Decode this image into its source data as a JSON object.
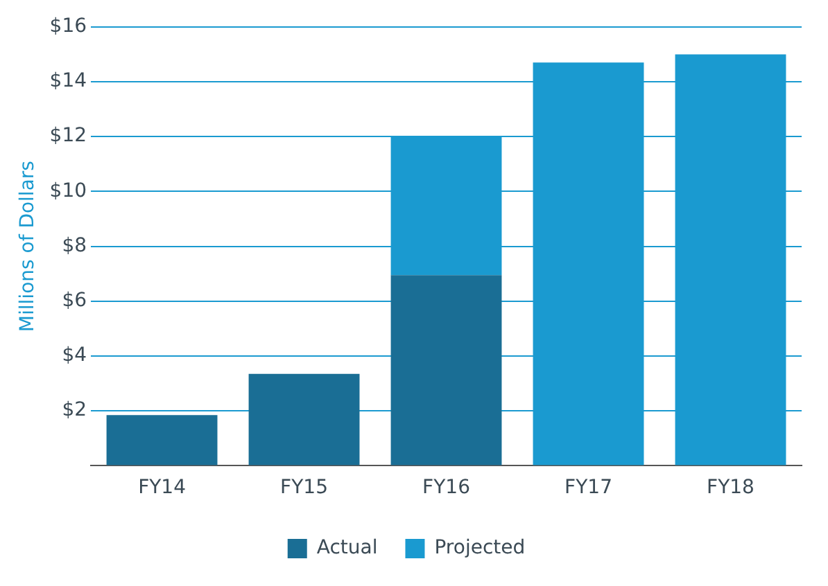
{
  "chart_data": {
    "type": "bar",
    "ylabel": "Millions of Dollars",
    "categories": [
      "FY14",
      "FY15",
      "FY16",
      "FY17",
      "FY18"
    ],
    "stacked": true,
    "series": [
      {
        "name": "Actual",
        "color": "#1a6e95",
        "values": [
          1.85,
          3.35,
          6.95,
          null,
          null
        ]
      },
      {
        "name": "Projected",
        "color": "#1a9ad0",
        "values": [
          null,
          null,
          5.05,
          14.7,
          15.0
        ]
      }
    ],
    "ylim": [
      0,
      16
    ],
    "yticks": [
      {
        "value": 0,
        "label": null
      },
      {
        "value": 2,
        "label": "$2"
      },
      {
        "value": 4,
        "label": "$4"
      },
      {
        "value": 6,
        "label": "$6"
      },
      {
        "value": 8,
        "label": "$8"
      },
      {
        "value": 10,
        "label": "$10"
      },
      {
        "value": 12,
        "label": "$12"
      },
      {
        "value": 14,
        "label": "$14"
      },
      {
        "value": 16,
        "label": "$16"
      }
    ],
    "grid": "y",
    "legend": "bottom"
  }
}
